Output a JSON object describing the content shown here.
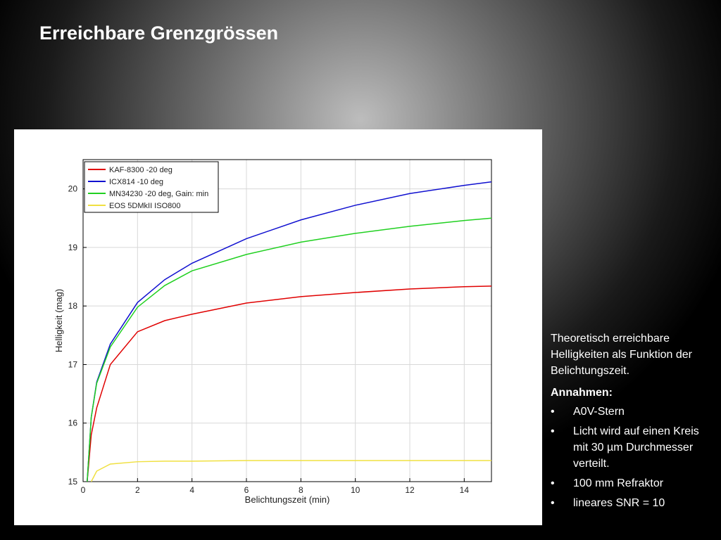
{
  "slide": {
    "title": "Erreichbare Grenzgrössen",
    "description": "Theoretisch erreichbare Helligkeiten als Funktion der Belichtungszeit.",
    "assumptions_heading": "Annahmen:",
    "assumptions": [
      "A0V-Stern",
      "Licht wird auf einen Kreis mit 30 µm Durchmesser verteilt.",
      "100 mm Refraktor",
      "lineares SNR = 10"
    ]
  },
  "chart_data": {
    "type": "line",
    "x_label": "Belichtungszeit (min)",
    "y_label": "Helligkeit (mag)",
    "x": [
      0.15,
      0.3,
      0.5,
      1,
      2,
      3,
      4,
      6,
      8,
      10,
      12,
      14,
      15
    ],
    "series": [
      {
        "name": "KAF-8300 -20 deg",
        "color": "#e00000",
        "values": [
          15,
          15.8,
          16.26,
          17.0,
          17.56,
          17.75,
          17.86,
          18.05,
          18.16,
          18.23,
          18.29,
          18.33,
          18.34
        ]
      },
      {
        "name": "ICX814 -10 deg",
        "color": "#1010d0",
        "values": [
          15,
          16.1,
          16.7,
          17.35,
          18.06,
          18.45,
          18.73,
          19.15,
          19.47,
          19.72,
          19.92,
          20.06,
          20.12
        ]
      },
      {
        "name": "MN34230 -20 deg, Gain: min",
        "color": "#20d020",
        "values": [
          15,
          16.1,
          16.68,
          17.3,
          17.98,
          18.35,
          18.6,
          18.88,
          19.09,
          19.24,
          19.36,
          19.46,
          19.5
        ]
      },
      {
        "name": "EOS 5DMkII ISO800",
        "color": "#f0e040",
        "values": [
          null,
          15,
          15.18,
          15.3,
          15.34,
          15.35,
          15.35,
          15.36,
          15.36,
          15.36,
          15.36,
          15.36,
          15.36
        ]
      }
    ],
    "xlim": [
      0,
      15
    ],
    "xticks": [
      0,
      2,
      4,
      6,
      8,
      10,
      12,
      14
    ],
    "ylim": [
      15,
      20.5
    ],
    "yticks": [
      15,
      16,
      17,
      18,
      19,
      20
    ],
    "grid": true,
    "legend": "upper-left"
  }
}
